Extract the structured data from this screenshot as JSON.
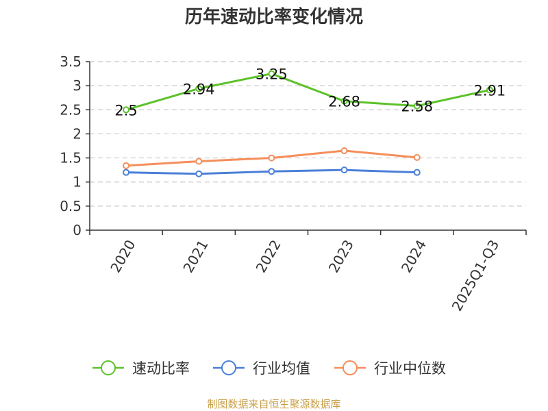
{
  "chart_data": {
    "type": "line",
    "title": "历年速动比率变化情况",
    "categories": [
      "2020",
      "2021",
      "2022",
      "2023",
      "2024",
      "2025Q1-Q3"
    ],
    "ylim": [
      0,
      3.5
    ],
    "yticks": [
      0,
      0.5,
      1,
      1.5,
      2,
      2.5,
      3,
      3.5
    ],
    "grid": true,
    "legend_position": "bottom",
    "series": [
      {
        "name": "速动比率",
        "color": "#5cc22a",
        "values": [
          2.5,
          2.94,
          3.25,
          2.68,
          2.58,
          2.91
        ],
        "labels": [
          "2.5",
          "2.94",
          "3.25",
          "2.68",
          "2.58",
          "2.91"
        ]
      },
      {
        "name": "行业均值",
        "color": "#4a7fd8",
        "values": [
          1.2,
          1.17,
          1.22,
          1.25,
          1.2,
          null
        ]
      },
      {
        "name": "行业中位数",
        "color": "#f58e5a",
        "values": [
          1.34,
          1.43,
          1.5,
          1.65,
          1.51,
          null
        ]
      }
    ],
    "source": "制图数据来自恒生聚源数据库"
  }
}
